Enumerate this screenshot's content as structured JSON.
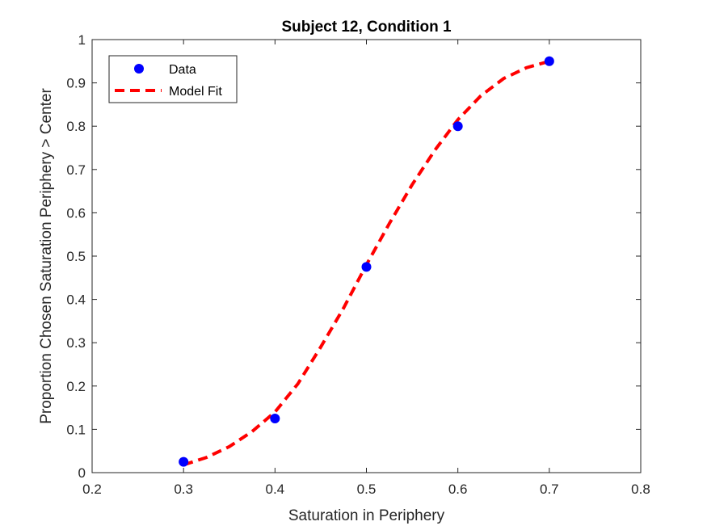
{
  "chart_data": {
    "type": "line",
    "title": "Subject 12, Condition 1",
    "xlabel": "Saturation in Periphery",
    "ylabel": "Proportion Chosen Saturation Periphery > Center",
    "xlim": [
      0.2,
      0.8
    ],
    "ylim": [
      0,
      1
    ],
    "xticks": [
      0.2,
      0.3,
      0.4,
      0.5,
      0.6,
      0.7,
      0.8
    ],
    "xtick_labels": [
      "0.2",
      "0.3",
      "0.4",
      "0.5",
      "0.6",
      "0.7",
      "0.8"
    ],
    "yticks": [
      0,
      0.1,
      0.2,
      0.3,
      0.4,
      0.5,
      0.6,
      0.7,
      0.8,
      0.9,
      1
    ],
    "ytick_labels": [
      "0",
      "0.1",
      "0.2",
      "0.3",
      "0.4",
      "0.5",
      "0.6",
      "0.7",
      "0.8",
      "0.9",
      "1"
    ],
    "grid": false,
    "legend_position": "top-left",
    "series": [
      {
        "name": "Data",
        "kind": "scatter",
        "color": "#0000ff",
        "x": [
          0.3,
          0.4,
          0.5,
          0.6,
          0.7
        ],
        "y": [
          0.025,
          0.125,
          0.475,
          0.8,
          0.95
        ]
      },
      {
        "name": "Model Fit",
        "kind": "line",
        "style": "dashed",
        "color": "#ff0000",
        "x": [
          0.3,
          0.325,
          0.35,
          0.375,
          0.4,
          0.425,
          0.45,
          0.475,
          0.5,
          0.525,
          0.55,
          0.575,
          0.6,
          0.625,
          0.65,
          0.675,
          0.7
        ],
        "y": [
          0.018,
          0.035,
          0.06,
          0.095,
          0.14,
          0.205,
          0.29,
          0.38,
          0.48,
          0.575,
          0.665,
          0.745,
          0.815,
          0.87,
          0.91,
          0.935,
          0.95
        ]
      }
    ]
  }
}
